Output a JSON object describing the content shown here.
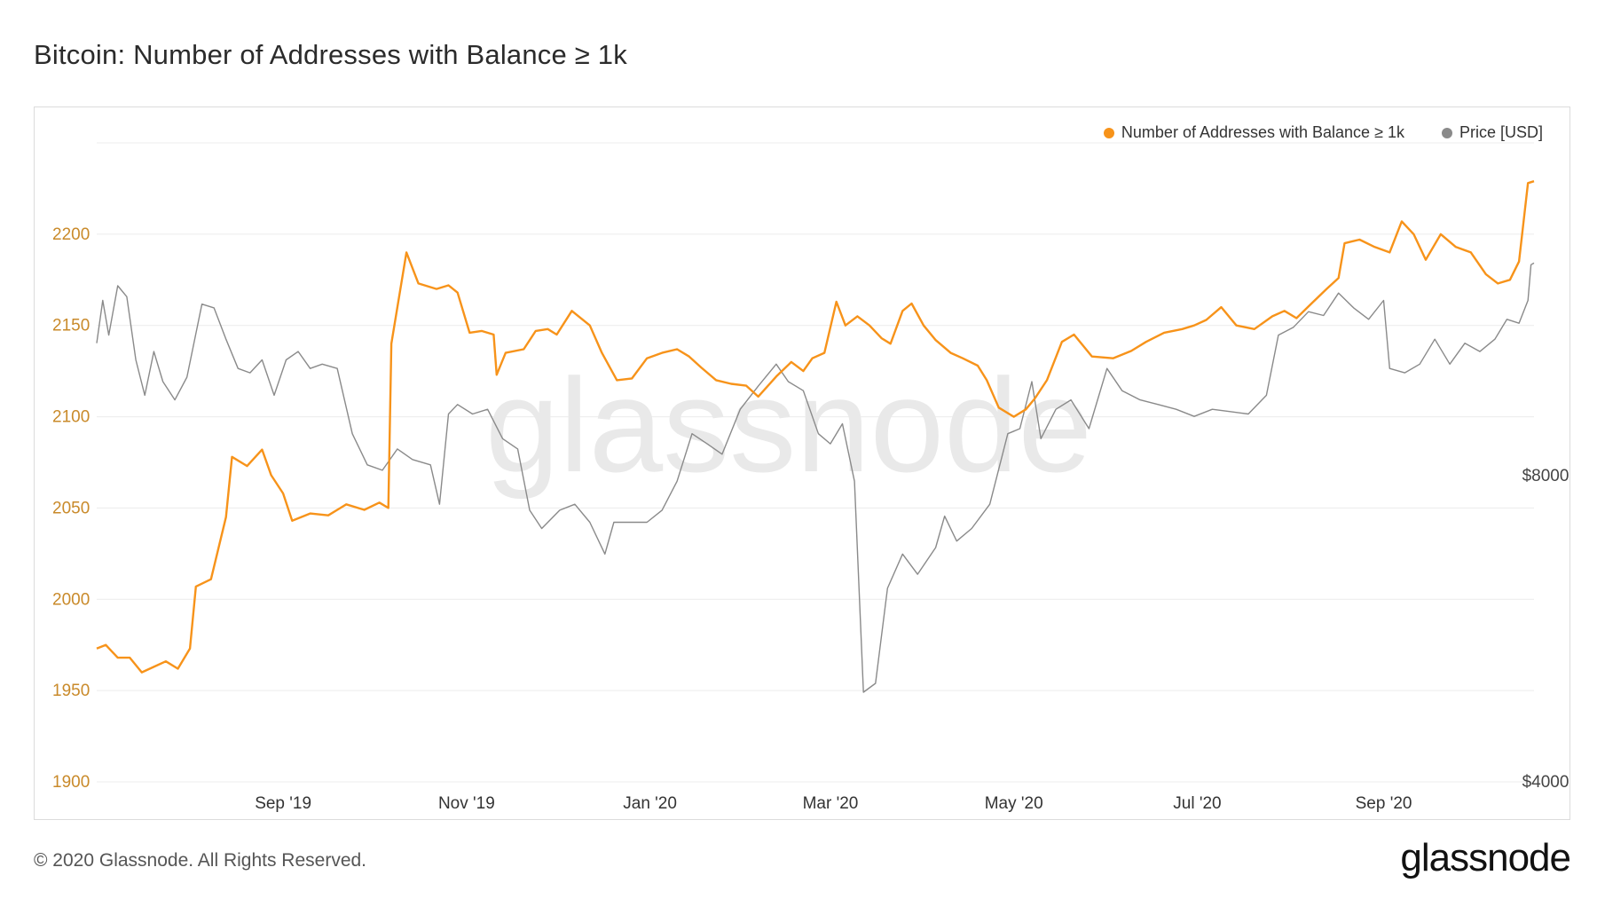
{
  "title": "Bitcoin: Number of Addresses with Balance ≥ 1k",
  "footer": {
    "copyright": "© 2020 Glassnode. All Rights Reserved.",
    "logo_text": "glassnode"
  },
  "watermark": "glassnode",
  "colors": {
    "addresses": "#f7931a",
    "price": "#8a8a8a",
    "left_tick": "#c98a2a",
    "grid": "#ececec"
  },
  "legend": [
    {
      "label": "Number of Addresses with Balance ≥ 1k",
      "color": "#f7931a"
    },
    {
      "label": "Price [USD]",
      "color": "#8a8a8a"
    }
  ],
  "chart_data": {
    "type": "line",
    "title": "Bitcoin: Number of Addresses with Balance ≥ 1k",
    "x_axis": {
      "range": [
        "2019-07-01",
        "2020-10-21"
      ],
      "ticks": [
        {
          "date": "2019-09-01",
          "label": "Sep '19"
        },
        {
          "date": "2019-11-01",
          "label": "Nov '19"
        },
        {
          "date": "2020-01-01",
          "label": "Jan '20"
        },
        {
          "date": "2020-03-01",
          "label": "Mar '20"
        },
        {
          "date": "2020-05-01",
          "label": "May '20"
        },
        {
          "date": "2020-07-01",
          "label": "Jul '20"
        },
        {
          "date": "2020-09-01",
          "label": "Sep '20"
        }
      ]
    },
    "y_left": {
      "label": "",
      "range": [
        1900,
        2250
      ],
      "ticks": [
        "1900",
        "1950",
        "2000",
        "2050",
        "2100",
        "2150",
        "2200"
      ]
    },
    "y_right": {
      "label": "",
      "scale": "log",
      "range": [
        4000,
        17000
      ],
      "ticks": [
        {
          "value": 4000,
          "label": "$4000"
        },
        {
          "value": 8000,
          "label": "$8000"
        }
      ]
    },
    "grid": true,
    "legend_position": "top-right",
    "series": [
      {
        "name": "Number of Addresses with Balance ≥ 1k",
        "axis": "left",
        "points": [
          [
            "2019-07-01",
            1973
          ],
          [
            "2019-07-04",
            1975
          ],
          [
            "2019-07-08",
            1968
          ],
          [
            "2019-07-12",
            1968
          ],
          [
            "2019-07-16",
            1960
          ],
          [
            "2019-07-20",
            1963
          ],
          [
            "2019-07-24",
            1966
          ],
          [
            "2019-07-28",
            1962
          ],
          [
            "2019-08-01",
            1973
          ],
          [
            "2019-08-03",
            2007
          ],
          [
            "2019-08-08",
            2011
          ],
          [
            "2019-08-13",
            2045
          ],
          [
            "2019-08-15",
            2078
          ],
          [
            "2019-08-20",
            2073
          ],
          [
            "2019-08-25",
            2082
          ],
          [
            "2019-08-28",
            2068
          ],
          [
            "2019-09-01",
            2058
          ],
          [
            "2019-09-04",
            2043
          ],
          [
            "2019-09-10",
            2047
          ],
          [
            "2019-09-16",
            2046
          ],
          [
            "2019-09-22",
            2052
          ],
          [
            "2019-09-28",
            2049
          ],
          [
            "2019-10-03",
            2053
          ],
          [
            "2019-10-06",
            2050
          ],
          [
            "2019-10-07",
            2140
          ],
          [
            "2019-10-12",
            2190
          ],
          [
            "2019-10-16",
            2173
          ],
          [
            "2019-10-22",
            2170
          ],
          [
            "2019-10-26",
            2172
          ],
          [
            "2019-10-29",
            2168
          ],
          [
            "2019-11-02",
            2146
          ],
          [
            "2019-11-06",
            2147
          ],
          [
            "2019-11-10",
            2145
          ],
          [
            "2019-11-11",
            2123
          ],
          [
            "2019-11-14",
            2135
          ],
          [
            "2019-11-20",
            2137
          ],
          [
            "2019-11-24",
            2147
          ],
          [
            "2019-11-28",
            2148
          ],
          [
            "2019-12-01",
            2145
          ],
          [
            "2019-12-06",
            2158
          ],
          [
            "2019-12-12",
            2150
          ],
          [
            "2019-12-16",
            2135
          ],
          [
            "2019-12-21",
            2120
          ],
          [
            "2019-12-26",
            2121
          ],
          [
            "2019-12-31",
            2132
          ],
          [
            "2020-01-05",
            2135
          ],
          [
            "2020-01-10",
            2137
          ],
          [
            "2020-01-14",
            2133
          ],
          [
            "2020-01-18",
            2127
          ],
          [
            "2020-01-23",
            2120
          ],
          [
            "2020-01-28",
            2118
          ],
          [
            "2020-02-02",
            2117
          ],
          [
            "2020-02-06",
            2111
          ],
          [
            "2020-02-12",
            2122
          ],
          [
            "2020-02-17",
            2130
          ],
          [
            "2020-02-21",
            2125
          ],
          [
            "2020-02-24",
            2132
          ],
          [
            "2020-02-28",
            2135
          ],
          [
            "2020-03-03",
            2163
          ],
          [
            "2020-03-06",
            2150
          ],
          [
            "2020-03-10",
            2155
          ],
          [
            "2020-03-14",
            2150
          ],
          [
            "2020-03-18",
            2143
          ],
          [
            "2020-03-21",
            2140
          ],
          [
            "2020-03-25",
            2158
          ],
          [
            "2020-03-28",
            2162
          ],
          [
            "2020-04-01",
            2150
          ],
          [
            "2020-04-05",
            2142
          ],
          [
            "2020-04-10",
            2135
          ],
          [
            "2020-04-14",
            2132
          ],
          [
            "2020-04-19",
            2128
          ],
          [
            "2020-04-22",
            2120
          ],
          [
            "2020-04-26",
            2105
          ],
          [
            "2020-05-01",
            2100
          ],
          [
            "2020-05-05",
            2104
          ],
          [
            "2020-05-08",
            2110
          ],
          [
            "2020-05-12",
            2120
          ],
          [
            "2020-05-17",
            2141
          ],
          [
            "2020-05-21",
            2145
          ],
          [
            "2020-05-27",
            2133
          ],
          [
            "2020-06-03",
            2132
          ],
          [
            "2020-06-09",
            2136
          ],
          [
            "2020-06-14",
            2141
          ],
          [
            "2020-06-20",
            2146
          ],
          [
            "2020-06-26",
            2148
          ],
          [
            "2020-06-30",
            2150
          ],
          [
            "2020-07-04",
            2153
          ],
          [
            "2020-07-09",
            2160
          ],
          [
            "2020-07-14",
            2150
          ],
          [
            "2020-07-20",
            2148
          ],
          [
            "2020-07-26",
            2155
          ],
          [
            "2020-07-30",
            2158
          ],
          [
            "2020-08-03",
            2154
          ],
          [
            "2020-08-08",
            2162
          ],
          [
            "2020-08-13",
            2170
          ],
          [
            "2020-08-17",
            2176
          ],
          [
            "2020-08-19",
            2195
          ],
          [
            "2020-08-24",
            2197
          ],
          [
            "2020-08-29",
            2193
          ],
          [
            "2020-09-03",
            2190
          ],
          [
            "2020-09-07",
            2207
          ],
          [
            "2020-09-11",
            2200
          ],
          [
            "2020-09-15",
            2186
          ],
          [
            "2020-09-20",
            2200
          ],
          [
            "2020-09-25",
            2193
          ],
          [
            "2020-09-30",
            2190
          ],
          [
            "2020-10-05",
            2178
          ],
          [
            "2020-10-09",
            2173
          ],
          [
            "2020-10-13",
            2175
          ],
          [
            "2020-10-16",
            2185
          ],
          [
            "2020-10-19",
            2228
          ],
          [
            "2020-10-21",
            2229
          ]
        ]
      },
      {
        "name": "Price [USD]",
        "axis": "right",
        "points": [
          [
            "2019-07-01",
            10800
          ],
          [
            "2019-07-03",
            11900
          ],
          [
            "2019-07-05",
            11000
          ],
          [
            "2019-07-08",
            12300
          ],
          [
            "2019-07-11",
            12000
          ],
          [
            "2019-07-14",
            10400
          ],
          [
            "2019-07-17",
            9600
          ],
          [
            "2019-07-20",
            10600
          ],
          [
            "2019-07-23",
            9900
          ],
          [
            "2019-07-27",
            9500
          ],
          [
            "2019-07-31",
            10000
          ],
          [
            "2019-08-05",
            11800
          ],
          [
            "2019-08-09",
            11700
          ],
          [
            "2019-08-13",
            10900
          ],
          [
            "2019-08-17",
            10200
          ],
          [
            "2019-08-21",
            10100
          ],
          [
            "2019-08-25",
            10400
          ],
          [
            "2019-08-29",
            9600
          ],
          [
            "2019-09-02",
            10400
          ],
          [
            "2019-09-06",
            10600
          ],
          [
            "2019-09-10",
            10200
          ],
          [
            "2019-09-14",
            10300
          ],
          [
            "2019-09-19",
            10200
          ],
          [
            "2019-09-24",
            8800
          ],
          [
            "2019-09-29",
            8200
          ],
          [
            "2019-10-04",
            8100
          ],
          [
            "2019-10-09",
            8500
          ],
          [
            "2019-10-14",
            8300
          ],
          [
            "2019-10-20",
            8200
          ],
          [
            "2019-10-23",
            7500
          ],
          [
            "2019-10-26",
            9200
          ],
          [
            "2019-10-29",
            9400
          ],
          [
            "2019-11-03",
            9200
          ],
          [
            "2019-11-08",
            9300
          ],
          [
            "2019-11-13",
            8700
          ],
          [
            "2019-11-18",
            8500
          ],
          [
            "2019-11-22",
            7400
          ],
          [
            "2019-11-26",
            7100
          ],
          [
            "2019-12-02",
            7400
          ],
          [
            "2019-12-07",
            7500
          ],
          [
            "2019-12-12",
            7200
          ],
          [
            "2019-12-17",
            6700
          ],
          [
            "2019-12-20",
            7200
          ],
          [
            "2019-12-25",
            7200
          ],
          [
            "2019-12-31",
            7200
          ],
          [
            "2020-01-05",
            7400
          ],
          [
            "2020-01-10",
            7900
          ],
          [
            "2020-01-15",
            8800
          ],
          [
            "2020-01-20",
            8600
          ],
          [
            "2020-01-25",
            8400
          ],
          [
            "2020-01-31",
            9300
          ],
          [
            "2020-02-06",
            9800
          ],
          [
            "2020-02-12",
            10300
          ],
          [
            "2020-02-16",
            9900
          ],
          [
            "2020-02-21",
            9700
          ],
          [
            "2020-02-26",
            8800
          ],
          [
            "2020-03-01",
            8600
          ],
          [
            "2020-03-05",
            9000
          ],
          [
            "2020-03-09",
            7900
          ],
          [
            "2020-03-12",
            4900
          ],
          [
            "2020-03-16",
            5000
          ],
          [
            "2020-03-20",
            6200
          ],
          [
            "2020-03-25",
            6700
          ],
          [
            "2020-03-30",
            6400
          ],
          [
            "2020-04-05",
            6800
          ],
          [
            "2020-04-08",
            7300
          ],
          [
            "2020-04-12",
            6900
          ],
          [
            "2020-04-17",
            7100
          ],
          [
            "2020-04-23",
            7500
          ],
          [
            "2020-04-29",
            8800
          ],
          [
            "2020-05-03",
            8900
          ],
          [
            "2020-05-07",
            9900
          ],
          [
            "2020-05-10",
            8700
          ],
          [
            "2020-05-15",
            9300
          ],
          [
            "2020-05-20",
            9500
          ],
          [
            "2020-05-26",
            8900
          ],
          [
            "2020-06-01",
            10200
          ],
          [
            "2020-06-06",
            9700
          ],
          [
            "2020-06-12",
            9500
          ],
          [
            "2020-06-18",
            9400
          ],
          [
            "2020-06-24",
            9300
          ],
          [
            "2020-06-30",
            9150
          ],
          [
            "2020-07-06",
            9300
          ],
          [
            "2020-07-12",
            9250
          ],
          [
            "2020-07-18",
            9200
          ],
          [
            "2020-07-24",
            9600
          ],
          [
            "2020-07-28",
            11000
          ],
          [
            "2020-08-02",
            11200
          ],
          [
            "2020-08-07",
            11600
          ],
          [
            "2020-08-12",
            11500
          ],
          [
            "2020-08-17",
            12100
          ],
          [
            "2020-08-22",
            11700
          ],
          [
            "2020-08-27",
            11400
          ],
          [
            "2020-09-01",
            11900
          ],
          [
            "2020-09-03",
            10200
          ],
          [
            "2020-09-08",
            10100
          ],
          [
            "2020-09-13",
            10300
          ],
          [
            "2020-09-18",
            10900
          ],
          [
            "2020-09-23",
            10300
          ],
          [
            "2020-09-28",
            10800
          ],
          [
            "2020-10-03",
            10600
          ],
          [
            "2020-10-08",
            10900
          ],
          [
            "2020-10-12",
            11400
          ],
          [
            "2020-10-16",
            11300
          ],
          [
            "2020-10-19",
            11900
          ],
          [
            "2020-10-20",
            12900
          ],
          [
            "2020-10-21",
            12950
          ]
        ]
      }
    ]
  }
}
